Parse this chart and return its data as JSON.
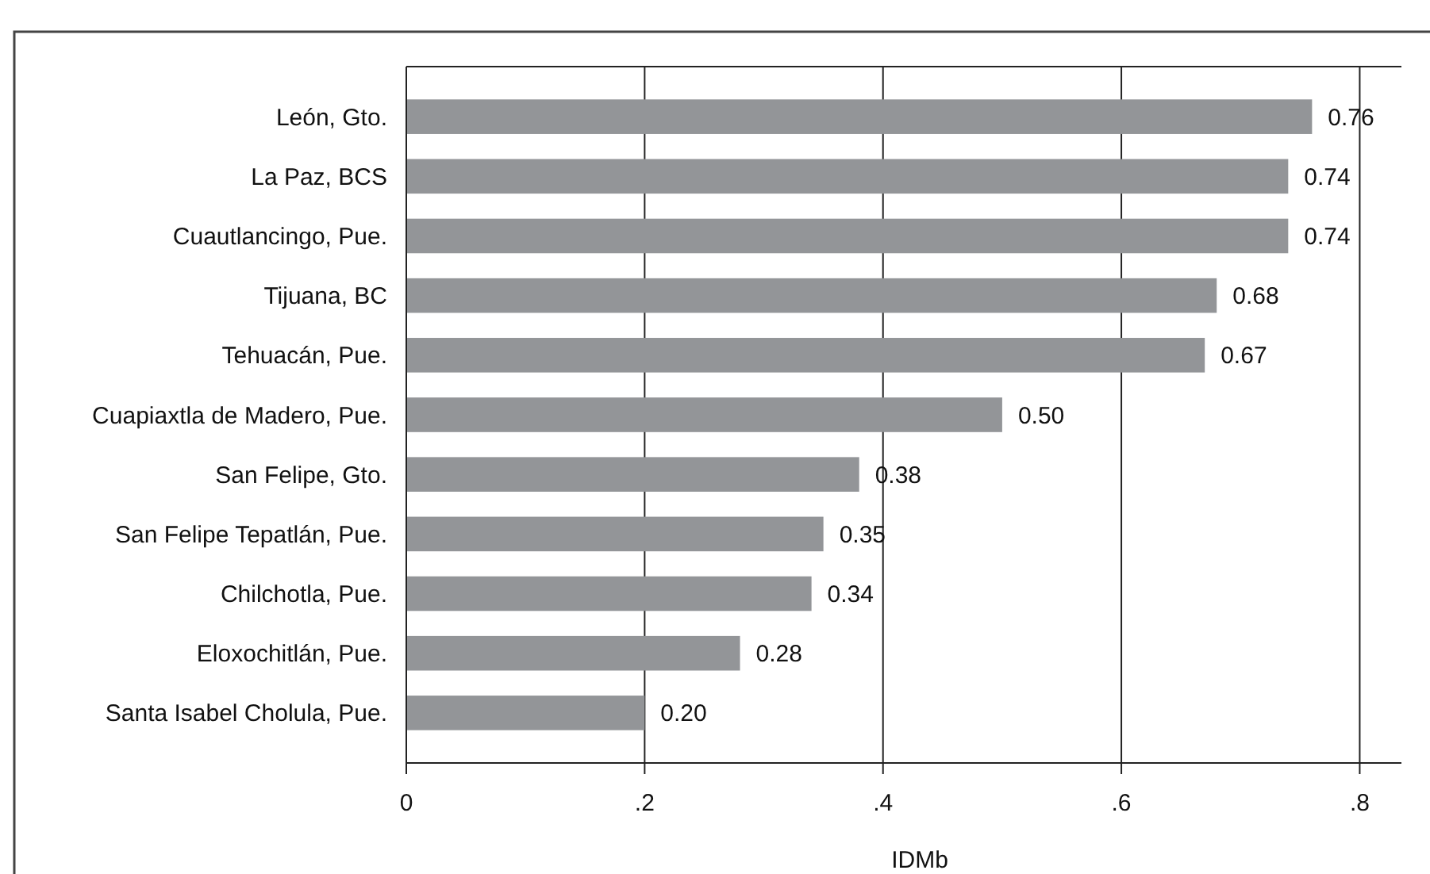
{
  "chart_data": {
    "type": "bar",
    "orientation": "horizontal",
    "xlabel": "IDMb",
    "categories": [
      "León, Gto.",
      "La Paz, BCS",
      "Cuautlancingo, Pue.",
      "Tijuana, BC",
      "Tehuacán, Pue.",
      "Cuapiaxtla de Madero, Pue.",
      "San Felipe, Gto.",
      "San Felipe Tepatlán, Pue.",
      "Chilchotla, Pue.",
      "Eloxochitlán, Pue.",
      "Santa Isabel Cholula, Pue."
    ],
    "values": [
      0.76,
      0.74,
      0.74,
      0.68,
      0.67,
      0.5,
      0.38,
      0.35,
      0.34,
      0.28,
      0.2
    ],
    "value_labels": [
      "0.76",
      "0.74",
      "0.74",
      "0.68",
      "0.67",
      "0.50",
      "0.38",
      "0.35",
      "0.34",
      "0.28",
      "0.20"
    ],
    "color": "#939598",
    "xlim": [
      0,
      0.835
    ],
    "xticks": [
      0,
      {
        "value": 0.2,
        "label": ".2"
      },
      {
        "value": 0.4,
        "label": ".4"
      },
      {
        "value": 0.6,
        "label": ".6"
      },
      {
        "value": 0.8,
        "label": ".8"
      }
    ],
    "grid": "x"
  }
}
